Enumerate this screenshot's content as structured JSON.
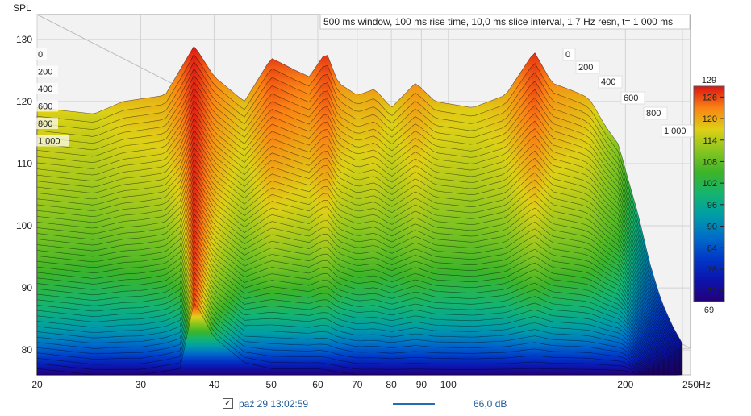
{
  "chart_data": {
    "type": "waterfall",
    "subtitle": "500 ms window, 100 ms rise time, 10,0 ms slice interval, 1,7 Hz resn, t= 1 000 ms",
    "ylabel": "SPL",
    "xunit": "Hz",
    "ylim": [
      76,
      134
    ],
    "xlim": [
      20,
      250
    ],
    "x_scale": "log",
    "y_ticks": [
      "80",
      "90",
      "100",
      "110",
      "120",
      "130"
    ],
    "x_ticks": [
      "20",
      "30",
      "40",
      "50",
      "60",
      "70",
      "80",
      "90",
      "100",
      "200",
      "250Hz"
    ],
    "time_ticks_left": [
      "0",
      "200",
      "400",
      "600",
      "800",
      "1 000"
    ],
    "time_ticks_right": [
      "0",
      "200",
      "400",
      "600",
      "800",
      "1 000"
    ],
    "colorbar_ticks": [
      "126",
      "120",
      "114",
      "108",
      "102",
      "96",
      "90",
      "84",
      "78",
      "72"
    ],
    "colorbar_range": [
      "129",
      "69"
    ],
    "peaks": [
      {
        "freq": 37,
        "spl": 129
      },
      {
        "freq": 50,
        "spl": 127
      },
      {
        "freq": 62,
        "spl": 128
      },
      {
        "freq": 88,
        "spl": 123
      },
      {
        "freq": 140,
        "spl": 128
      },
      {
        "freq": 160,
        "spl": 122
      },
      {
        "freq": 175,
        "spl": 120
      }
    ],
    "back_slice": [
      [
        20,
        119
      ],
      [
        25,
        118
      ],
      [
        28,
        120
      ],
      [
        33,
        121
      ],
      [
        37,
        129
      ],
      [
        40,
        124
      ],
      [
        45,
        120
      ],
      [
        50,
        127
      ],
      [
        55,
        125
      ],
      [
        58,
        124
      ],
      [
        62,
        128
      ],
      [
        65,
        123
      ],
      [
        70,
        121
      ],
      [
        75,
        122
      ],
      [
        80,
        119
      ],
      [
        88,
        123
      ],
      [
        95,
        120
      ],
      [
        110,
        119
      ],
      [
        125,
        121
      ],
      [
        140,
        128
      ],
      [
        150,
        123
      ],
      [
        160,
        122
      ],
      [
        170,
        121
      ],
      [
        175,
        120
      ],
      [
        185,
        116
      ],
      [
        195,
        113
      ],
      [
        200,
        109
      ],
      [
        210,
        102
      ],
      [
        220,
        94
      ],
      [
        230,
        88
      ],
      [
        240,
        84
      ],
      [
        250,
        81
      ]
    ],
    "front_slice": [
      [
        20,
        77
      ],
      [
        25,
        76
      ],
      [
        30,
        76
      ],
      [
        35,
        77
      ],
      [
        37,
        88
      ],
      [
        40,
        82
      ],
      [
        45,
        78
      ],
      [
        50,
        77
      ],
      [
        60,
        77
      ],
      [
        70,
        76
      ],
      [
        100,
        76
      ],
      [
        150,
        76
      ],
      [
        200,
        76
      ],
      [
        250,
        76
      ]
    ]
  },
  "legend": {
    "checkbox_mark": "✓",
    "timestamp": "paź 29 13:02:59",
    "level": "66,0 dB",
    "line_color": "#1f6fb2"
  }
}
